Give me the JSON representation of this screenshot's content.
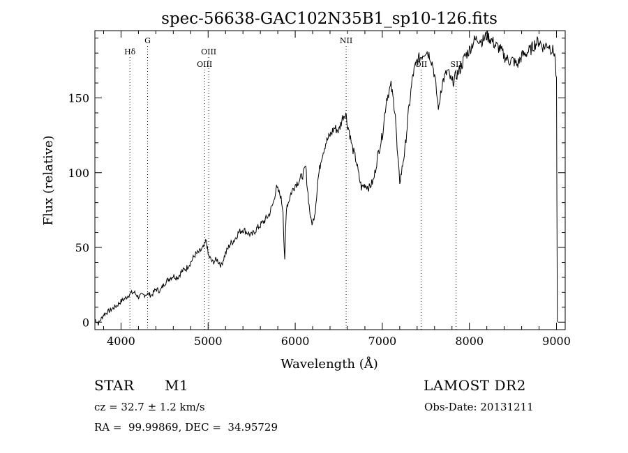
{
  "chart_data": {
    "type": "line",
    "title": "spec-56638-GAC102N35B1_sp10-126.fits",
    "xlabel": "Wavelength (Å)",
    "ylabel": "Flux (relative)",
    "xlim": [
      3700,
      9100
    ],
    "ylim": [
      -5,
      195
    ],
    "xticks": [
      4000,
      5000,
      6000,
      7000,
      8000,
      9000
    ],
    "xtick_labels": [
      "4000",
      "5000",
      "6000",
      "7000",
      "8000",
      "9000"
    ],
    "yticks": [
      0,
      50,
      100,
      150
    ],
    "ytick_labels": [
      "0",
      "50",
      "100",
      "150"
    ],
    "grid": false,
    "series": [
      {
        "x": [
          3700,
          3740,
          3800,
          3850,
          3900,
          3950,
          4000,
          4050,
          4100,
          4150,
          4200,
          4250,
          4300,
          4350,
          4400,
          4450,
          4500,
          4550,
          4600,
          4650,
          4700,
          4750,
          4800,
          4850,
          4900,
          4950,
          4980,
          5000,
          5050,
          5100,
          5150,
          5200,
          5250,
          5300,
          5350,
          5400,
          5450,
          5500,
          5550,
          5600,
          5650,
          5700,
          5750,
          5780,
          5800,
          5830,
          5860,
          5870,
          5880,
          5890,
          5900,
          5920,
          5950,
          6000,
          6050,
          6100,
          6120,
          6140,
          6160,
          6180,
          6200,
          6230,
          6260,
          6300,
          6350,
          6400,
          6450,
          6500,
          6550,
          6580,
          6600,
          6620,
          6650,
          6700,
          6730,
          6760,
          6800,
          6850,
          6900,
          6950,
          7000,
          7050,
          7100,
          7150,
          7170,
          7200,
          7220,
          7240,
          7260,
          7300,
          7350,
          7400,
          7450,
          7500,
          7550,
          7580,
          7600,
          7630,
          7650,
          7670,
          7700,
          7750,
          7800,
          7850,
          7900,
          7950,
          8000,
          8050,
          8100,
          8150,
          8200,
          8250,
          8300,
          8350,
          8400,
          8450,
          8500,
          8550,
          8600,
          8650,
          8700,
          8750,
          8800,
          8850,
          8900,
          8950,
          8980,
          9000,
          9010
        ],
        "y": [
          2,
          -1,
          5,
          7,
          9,
          11,
          14,
          16,
          19,
          20,
          17,
          18,
          19,
          18,
          22,
          21,
          26,
          29,
          31,
          30,
          34,
          36,
          40,
          45,
          47,
          50,
          55,
          45,
          40,
          42,
          38,
          46,
          52,
          55,
          60,
          62,
          60,
          58,
          62,
          65,
          68,
          72,
          80,
          90,
          88,
          85,
          75,
          55,
          40,
          62,
          78,
          80,
          86,
          92,
          95,
          100,
          104,
          90,
          78,
          68,
          66,
          75,
          95,
          110,
          120,
          125,
          130,
          128,
          138,
          140,
          132,
          128,
          118,
          108,
          98,
          90,
          92,
          90,
          95,
          112,
          125,
          150,
          158,
          140,
          115,
          94,
          100,
          108,
          115,
          140,
          165,
          175,
          178,
          182,
          178,
          172,
          165,
          150,
          142,
          155,
          162,
          168,
          160,
          165,
          170,
          178,
          182,
          188,
          190,
          188,
          192,
          189,
          185,
          183,
          178,
          175,
          175,
          172,
          178,
          180,
          182,
          186,
          188,
          184,
          186,
          182,
          180,
          160,
          0
        ]
      }
    ],
    "annotations": [
      {
        "label": "Hδ",
        "x": 4102,
        "row": 1
      },
      {
        "label": "G",
        "x": 4305,
        "row": 0
      },
      {
        "label": "OIII",
        "x": 4959,
        "row": 2
      },
      {
        "label": "OIII",
        "x": 5007,
        "row": 1
      },
      {
        "label": "NII",
        "x": 6585,
        "row": 0
      },
      {
        "label": "OII",
        "x": 7445,
        "row": 2
      },
      {
        "label": "SII",
        "x": 7847,
        "row": 2
      }
    ]
  },
  "info": {
    "object_class": "STAR",
    "subclass": "M1",
    "survey": "LAMOST DR2",
    "cz": "cz = 32.7 ± 1.2 km/s",
    "coords": "RA =  99.99869, DEC =  34.95729",
    "obs_date": "Obs-Date: 20131211"
  }
}
